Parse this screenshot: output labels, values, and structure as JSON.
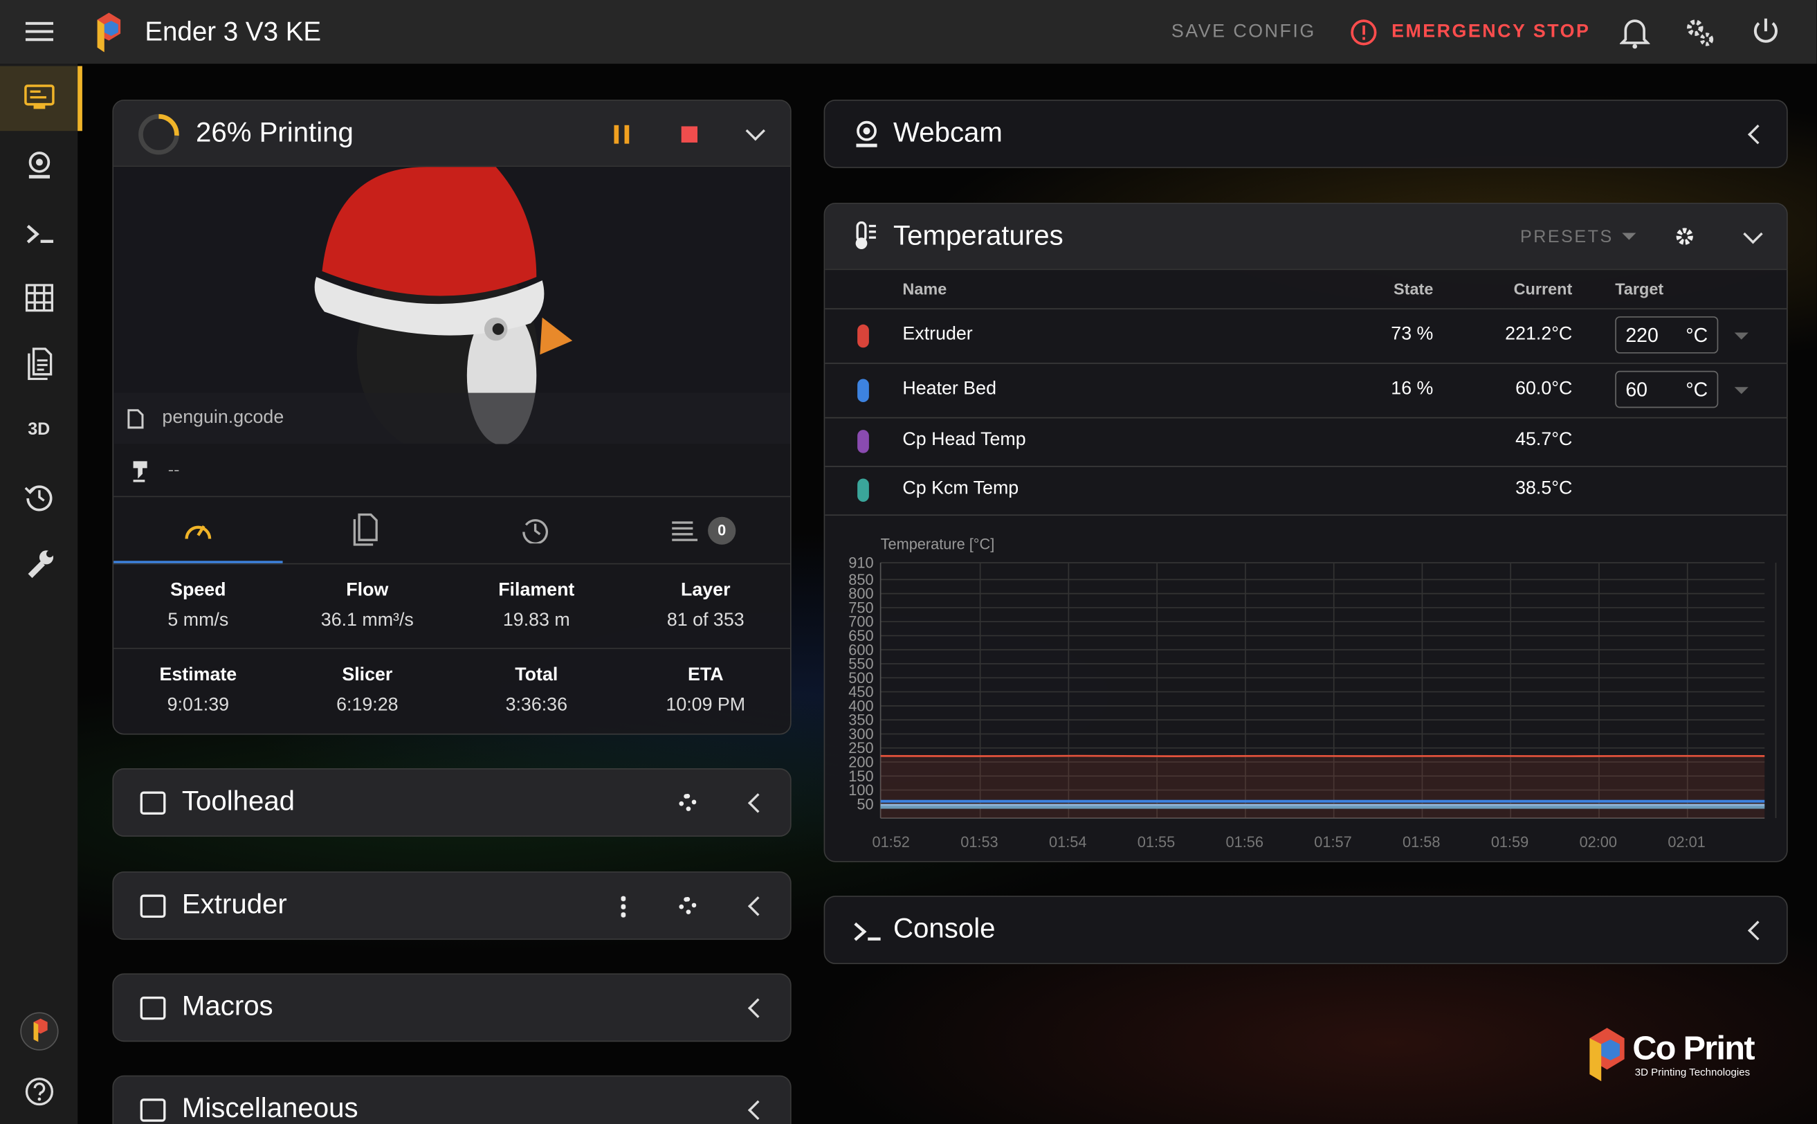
{
  "app_bar": {
    "title": "Ender 3 V3 KE",
    "save_config": "SAVE CONFIG",
    "emergency_stop": "EMERGENCY STOP"
  },
  "status_panel": {
    "title": "26% Printing",
    "progress": 26,
    "filename": "penguin.gcode",
    "filament": "--",
    "queue_count": 0,
    "stats": [
      {
        "label": "Speed",
        "value": "5 mm/s"
      },
      {
        "label": "Flow",
        "value": "36.1 mm³/s"
      },
      {
        "label": "Filament",
        "value": "19.83 m"
      },
      {
        "label": "Layer",
        "value": "81 of 353"
      },
      {
        "label": "Estimate",
        "value": "9:01:39"
      },
      {
        "label": "Slicer",
        "value": "6:19:28"
      },
      {
        "label": "Total",
        "value": "3:36:36"
      },
      {
        "label": "ETA",
        "value": "10:09 PM"
      }
    ]
  },
  "left_panels": [
    "Toolhead",
    "Extruder",
    "Macros",
    "Miscellaneous"
  ],
  "webcam": {
    "title": "Webcam"
  },
  "temperatures": {
    "title": "Temperatures",
    "presets": "PRESETS",
    "columns": [
      "Name",
      "State",
      "Current",
      "Target"
    ],
    "rows": [
      {
        "name": "Extruder",
        "state": "73 %",
        "current": "221.2°C",
        "target": "220",
        "unit": "°C"
      },
      {
        "name": "Heater Bed",
        "state": "16 %",
        "current": "60.0°C",
        "target": "60",
        "unit": "°C"
      },
      {
        "name": "Cp Head Temp",
        "current": "45.7°C"
      },
      {
        "name": "Cp Kcm Temp",
        "current": "38.5°C"
      }
    ]
  },
  "chart_data": {
    "type": "line",
    "y_label": "Temperature [°C]",
    "ylim": [
      0,
      910
    ],
    "yticks": [
      50,
      100,
      150,
      200,
      250,
      300,
      350,
      400,
      450,
      500,
      550,
      600,
      650,
      700,
      750,
      800,
      850,
      910
    ],
    "grid": true,
    "categories": [
      "01:52",
      "01:53",
      "01:54",
      "01:55",
      "01:56",
      "01:57",
      "01:58",
      "01:59",
      "02:00",
      "02:01"
    ],
    "series": [
      {
        "name": "Extruder",
        "color": "#e5533c",
        "values": [
          221.5,
          220.8,
          221.9,
          220.6,
          221.7,
          220.9,
          221.4,
          220.7,
          221.6,
          221.2
        ]
      },
      {
        "name": "Heater Bed",
        "color": "#3d83e0",
        "values": [
          60,
          60,
          60,
          60,
          60,
          60,
          60,
          60,
          60,
          60
        ]
      },
      {
        "name": "Cp Head Temp",
        "color": "#8fb3d9",
        "values": [
          45.7,
          45.7,
          45.7,
          45.7,
          45.7,
          45.7,
          45.7,
          45.7,
          45.7,
          45.7
        ]
      },
      {
        "name": "Cp Kcm Temp",
        "color": "#6c9bb8",
        "values": [
          38.5,
          38.5,
          38.5,
          38.5,
          38.5,
          38.5,
          38.5,
          38.5,
          38.5,
          38.5
        ]
      }
    ]
  },
  "console": {
    "title": "Console"
  },
  "brand": {
    "name": "Co Print",
    "tagline": "3D Printing Technologies"
  }
}
